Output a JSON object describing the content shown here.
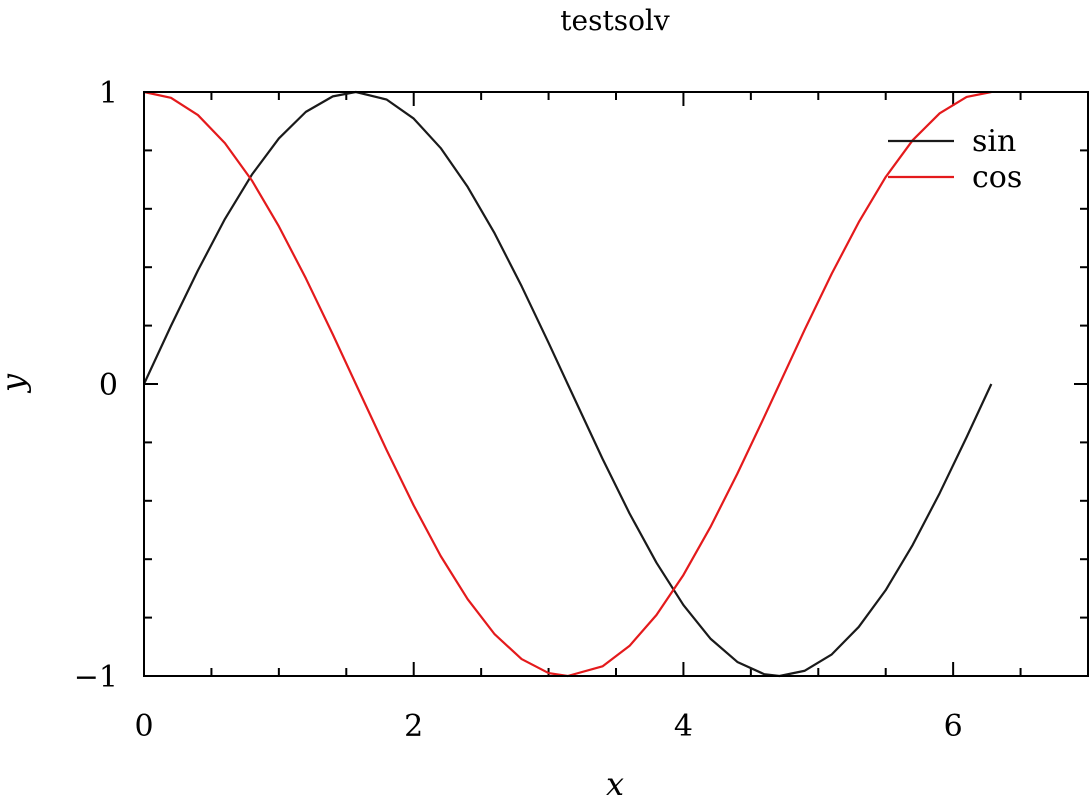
{
  "chart_data": {
    "type": "line",
    "title": "testsolv",
    "xlabel": "x",
    "ylabel": "y",
    "xlim": [
      0,
      7
    ],
    "ylim": [
      -1,
      1
    ],
    "x_major_ticks": [
      0,
      2,
      4,
      6
    ],
    "x_tick_labels": [
      "0",
      "2",
      "4",
      "6"
    ],
    "x_minor_ticks": [
      0.5,
      1,
      1.5,
      2.5,
      3,
      3.5,
      4.5,
      5,
      5.5,
      6.5
    ],
    "y_major_ticks": [
      -1,
      0,
      1
    ],
    "y_tick_labels": [
      "−1",
      "0",
      "1"
    ],
    "y_minor_ticks": [
      -0.8,
      -0.6,
      -0.4,
      -0.2,
      0.2,
      0.4,
      0.6,
      0.8
    ],
    "grid": false,
    "legend_position": "top-right",
    "series": [
      {
        "name": "sin",
        "color": "#1a1a1a",
        "x": [
          0,
          0.2,
          0.4,
          0.6,
          0.8,
          1.0,
          1.2,
          1.4,
          1.5708,
          1.8,
          2.0,
          2.2,
          2.4,
          2.6,
          2.8,
          3.0,
          3.1416,
          3.4,
          3.6,
          3.8,
          4.0,
          4.2,
          4.4,
          4.6,
          4.7124,
          4.9,
          5.1,
          5.3,
          5.5,
          5.7,
          5.9,
          6.1,
          6.2832
        ],
        "y": [
          0,
          0.199,
          0.389,
          0.565,
          0.717,
          0.841,
          0.932,
          0.985,
          1.0,
          0.974,
          0.909,
          0.808,
          0.675,
          0.516,
          0.335,
          0.141,
          0,
          -0.256,
          -0.443,
          -0.612,
          -0.757,
          -0.872,
          -0.952,
          -0.994,
          -1.0,
          -0.982,
          -0.926,
          -0.832,
          -0.706,
          -0.551,
          -0.374,
          -0.182,
          0
        ]
      },
      {
        "name": "cos",
        "color": "#e41a1c",
        "x": [
          0,
          0.2,
          0.4,
          0.6,
          0.8,
          1.0,
          1.2,
          1.4,
          1.5708,
          1.8,
          2.0,
          2.2,
          2.4,
          2.6,
          2.8,
          3.0,
          3.1416,
          3.4,
          3.6,
          3.8,
          4.0,
          4.2,
          4.4,
          4.6,
          4.7124,
          4.9,
          5.1,
          5.3,
          5.5,
          5.7,
          5.9,
          6.1,
          6.2832
        ],
        "y": [
          1,
          0.98,
          0.921,
          0.825,
          0.697,
          0.54,
          0.362,
          0.17,
          0,
          -0.227,
          -0.416,
          -0.589,
          -0.737,
          -0.857,
          -0.942,
          -0.99,
          -1.0,
          -0.967,
          -0.897,
          -0.791,
          -0.654,
          -0.49,
          -0.307,
          -0.112,
          0,
          0.187,
          0.378,
          0.554,
          0.709,
          0.835,
          0.927,
          0.983,
          1.0
        ]
      }
    ]
  }
}
